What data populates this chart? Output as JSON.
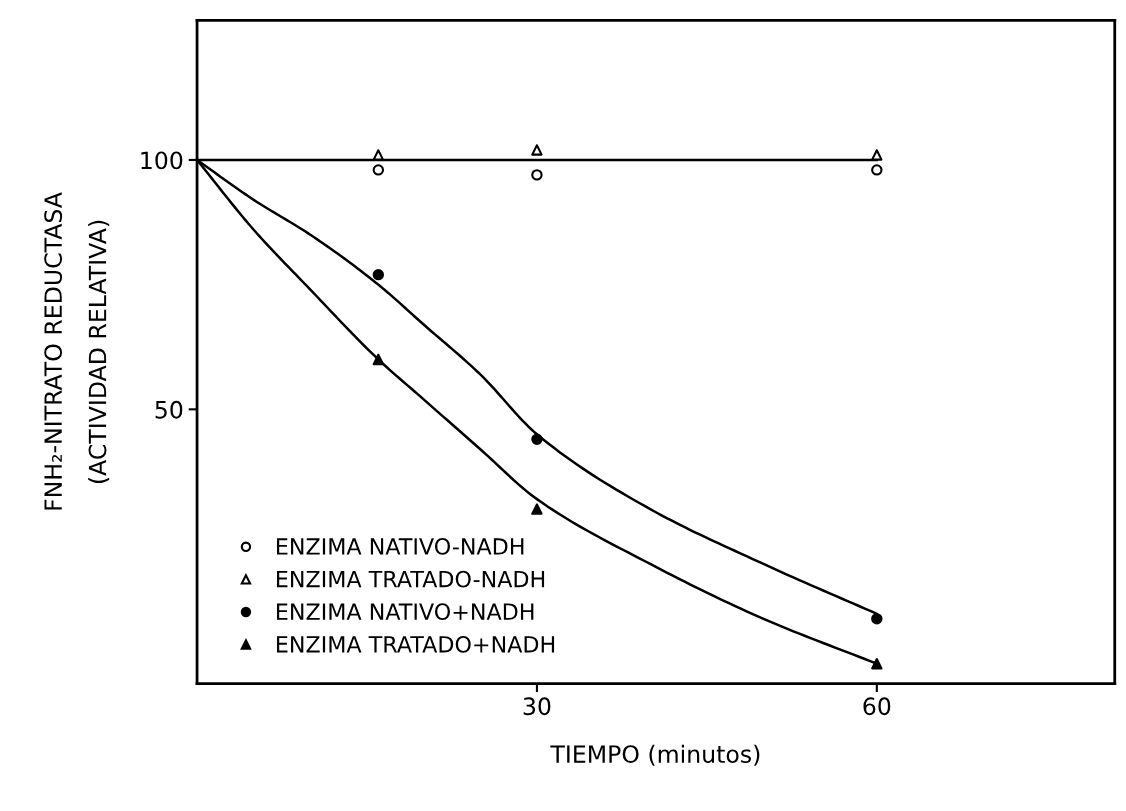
{
  "chart_data": {
    "type": "scatter",
    "xlabel": "TIEMPO (minutos)",
    "ylabel": "FNH₂-NITRATO REDUCTASA\n(ACTIVIDAD RELATIVA)",
    "xlim": [
      0,
      81
    ],
    "ylim": [
      -5,
      128
    ],
    "xticks": [
      30,
      60
    ],
    "yticks": [
      50,
      100
    ],
    "grid": false,
    "legend": "bottom left",
    "series": [
      {
        "type": "line",
        "color": "#000000",
        "marker": "none",
        "x": [
          0,
          60
        ],
        "values": [
          100,
          100
        ]
      },
      {
        "type": "line",
        "color": "#000000",
        "marker": "none",
        "x": [
          0,
          5,
          10,
          16,
          20,
          25,
          30,
          40,
          50,
          60
        ],
        "values": [
          100,
          92,
          85,
          75,
          67,
          57,
          45,
          30,
          19,
          9
        ]
      },
      {
        "type": "line",
        "color": "#000000",
        "marker": "none",
        "x": [
          0,
          5,
          10,
          16,
          20,
          25,
          30,
          40,
          50,
          60
        ],
        "values": [
          100,
          86,
          74,
          60,
          52,
          42,
          32,
          19,
          8,
          -1
        ]
      },
      {
        "name": "ENZIMA NATIVO-NADH",
        "color": "#ffffff",
        "marker": "circle",
        "x": [
          16,
          30,
          60
        ],
        "values": [
          98,
          97,
          98
        ]
      },
      {
        "name": "ENZIMA TRATADO-NADH",
        "color": "#ffffff",
        "marker": "triangle",
        "x": [
          16,
          30,
          60
        ],
        "values": [
          101,
          102,
          101
        ]
      },
      {
        "name": "ENZIMA NATIVO+NADH",
        "color": "#000000",
        "marker": "circle",
        "x": [
          16,
          30,
          60
        ],
        "values": [
          77,
          44,
          8
        ]
      },
      {
        "name": "ENZIMA TRATADO+NADH",
        "color": "#000000",
        "marker": "triangle",
        "x": [
          16,
          30,
          60
        ],
        "values": [
          60,
          30,
          -1
        ]
      }
    ]
  }
}
